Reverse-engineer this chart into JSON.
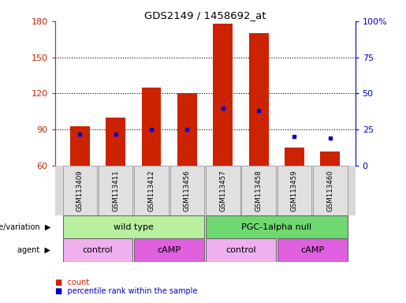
{
  "title": "GDS2149 / 1458692_at",
  "samples": [
    "GSM113409",
    "GSM113411",
    "GSM113412",
    "GSM113456",
    "GSM113457",
    "GSM113458",
    "GSM113459",
    "GSM113460"
  ],
  "counts": [
    93,
    100,
    125,
    120,
    178,
    170,
    75,
    72
  ],
  "percentile_ranks": [
    22,
    22,
    25,
    25,
    40,
    38,
    20,
    19
  ],
  "bar_bottom": 60,
  "ylim_left": [
    60,
    180
  ],
  "ylim_right": [
    0,
    100
  ],
  "yticks_left": [
    60,
    90,
    120,
    150,
    180
  ],
  "yticks_right": [
    0,
    25,
    50,
    75,
    100
  ],
  "bar_color": "#cc2200",
  "percentile_color": "#0000cc",
  "genotype_groups": [
    {
      "label": "wild type",
      "start": 0,
      "end": 3,
      "color": "#b8f0a0"
    },
    {
      "label": "PGC-1alpha null",
      "start": 4,
      "end": 7,
      "color": "#70d870"
    }
  ],
  "agent_groups": [
    {
      "label": "control",
      "start": 0,
      "end": 1,
      "color": "#f0b0f0"
    },
    {
      "label": "cAMP",
      "start": 2,
      "end": 3,
      "color": "#e060e0"
    },
    {
      "label": "control",
      "start": 4,
      "end": 5,
      "color": "#f0b0f0"
    },
    {
      "label": "cAMP",
      "start": 6,
      "end": 7,
      "color": "#e060e0"
    }
  ],
  "legend_count_color": "#cc2200",
  "legend_percentile_color": "#0000cc",
  "left_axis_color": "#cc2200",
  "right_axis_color": "#0000cc",
  "grid_lines": [
    90,
    120,
    150
  ],
  "label_area_color": "#d8d8d8"
}
